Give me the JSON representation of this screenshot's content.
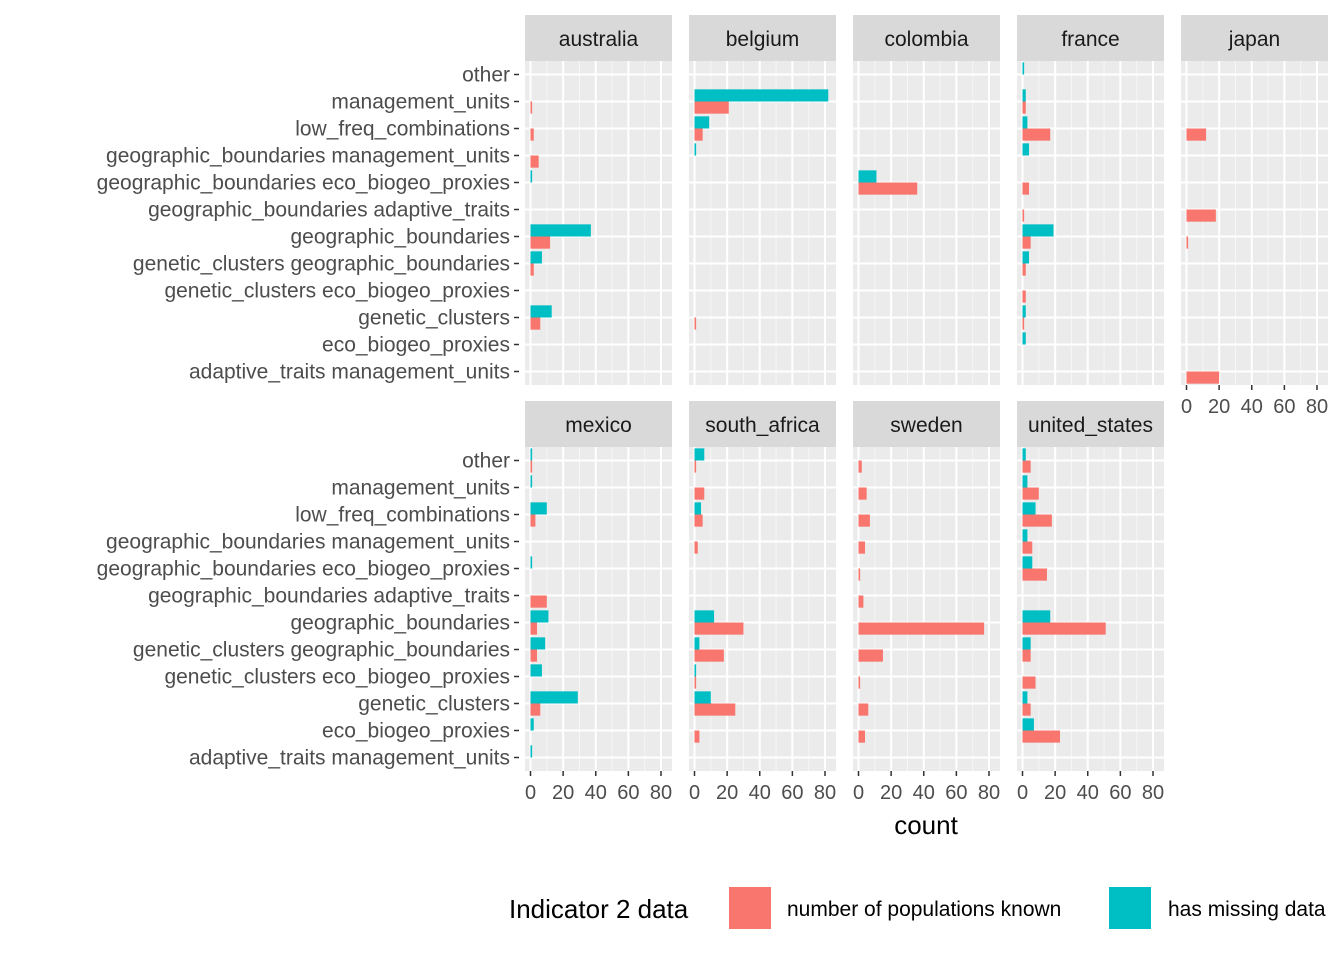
{
  "chart_data": {
    "type": "bar",
    "orientation": "horizontal",
    "facet_by": "country",
    "xlabel": "count",
    "xlim": [
      0,
      82
    ],
    "x_ticks": [
      0,
      20,
      40,
      60,
      80
    ],
    "grid": true,
    "categories": [
      "adaptive_traits management_units",
      "eco_biogeo_proxies",
      "genetic_clusters",
      "genetic_clusters eco_biogeo_proxies",
      "genetic_clusters geographic_boundaries",
      "geographic_boundaries",
      "geographic_boundaries adaptive_traits",
      "geographic_boundaries eco_biogeo_proxies",
      "geographic_boundaries management_units",
      "low_freq_combinations",
      "management_units",
      "other"
    ],
    "legend": {
      "title": "Indicator 2 data",
      "position": "bottom",
      "items": [
        {
          "key": "known",
          "label": "number of populations known",
          "color": "#F8766D"
        },
        {
          "key": "missing",
          "label": "has missing data",
          "color": "#00BFC4"
        }
      ]
    },
    "facets": [
      {
        "name": "australia",
        "series": [
          {
            "key": "known",
            "values": [
              0,
              0,
              6,
              0,
              2,
              12,
              0,
              0,
              5,
              2,
              1,
              0
            ]
          },
          {
            "key": "missing",
            "values": [
              0,
              0,
              13,
              0,
              7,
              37,
              0,
              1,
              0,
              0,
              0,
              0
            ]
          }
        ]
      },
      {
        "name": "belgium",
        "series": [
          {
            "key": "known",
            "values": [
              0,
              0,
              1,
              0,
              0,
              0,
              0,
              0,
              0,
              5,
              21,
              0
            ]
          },
          {
            "key": "missing",
            "values": [
              0,
              0,
              0,
              0,
              0,
              0,
              0,
              0,
              1,
              9,
              82,
              0
            ]
          }
        ]
      },
      {
        "name": "colombia",
        "series": [
          {
            "key": "known",
            "values": [
              0,
              0,
              0,
              0,
              0,
              0,
              0,
              36,
              0,
              0,
              0,
              0
            ]
          },
          {
            "key": "missing",
            "values": [
              0,
              0,
              0,
              0,
              0,
              0,
              0,
              11,
              0,
              0,
              0,
              0
            ]
          }
        ]
      },
      {
        "name": "france",
        "series": [
          {
            "key": "known",
            "values": [
              0,
              0,
              1,
              2,
              2,
              5,
              1,
              4,
              0,
              17,
              2,
              0
            ]
          },
          {
            "key": "missing",
            "values": [
              0,
              2,
              2,
              0,
              4,
              19,
              0,
              0,
              4,
              3,
              2,
              1
            ]
          }
        ]
      },
      {
        "name": "japan",
        "series": [
          {
            "key": "known",
            "values": [
              20,
              0,
              0,
              0,
              0,
              1,
              18,
              0,
              0,
              12,
              0,
              0
            ]
          },
          {
            "key": "missing",
            "values": [
              0,
              0,
              0,
              0,
              0,
              0,
              0,
              0,
              0,
              0,
              0,
              0
            ]
          }
        ]
      },
      {
        "name": "mexico",
        "series": [
          {
            "key": "known",
            "values": [
              0,
              0,
              6,
              0,
              4,
              4,
              10,
              0,
              0,
              3,
              0,
              1
            ]
          },
          {
            "key": "missing",
            "values": [
              1,
              2,
              29,
              7,
              9,
              11,
              0,
              1,
              0,
              10,
              1,
              1
            ]
          }
        ]
      },
      {
        "name": "south_africa",
        "series": [
          {
            "key": "known",
            "values": [
              0,
              3,
              25,
              1,
              18,
              30,
              0,
              0,
              2,
              5,
              6,
              1
            ]
          },
          {
            "key": "missing",
            "values": [
              0,
              0,
              10,
              1,
              3,
              12,
              0,
              0,
              0,
              4,
              0,
              6
            ]
          }
        ]
      },
      {
        "name": "sweden",
        "series": [
          {
            "key": "known",
            "values": [
              0,
              4,
              6,
              1,
              15,
              77,
              3,
              1,
              4,
              7,
              5,
              2
            ]
          },
          {
            "key": "missing",
            "values": [
              0,
              0,
              0,
              0,
              0,
              0,
              0,
              0,
              0,
              0,
              0,
              0
            ]
          }
        ]
      },
      {
        "name": "united_states",
        "series": [
          {
            "key": "known",
            "values": [
              0,
              23,
              5,
              8,
              5,
              51,
              0,
              15,
              6,
              18,
              10,
              5
            ]
          },
          {
            "key": "missing",
            "values": [
              0,
              7,
              3,
              0,
              5,
              17,
              0,
              6,
              3,
              8,
              3,
              2
            ]
          }
        ]
      }
    ]
  }
}
